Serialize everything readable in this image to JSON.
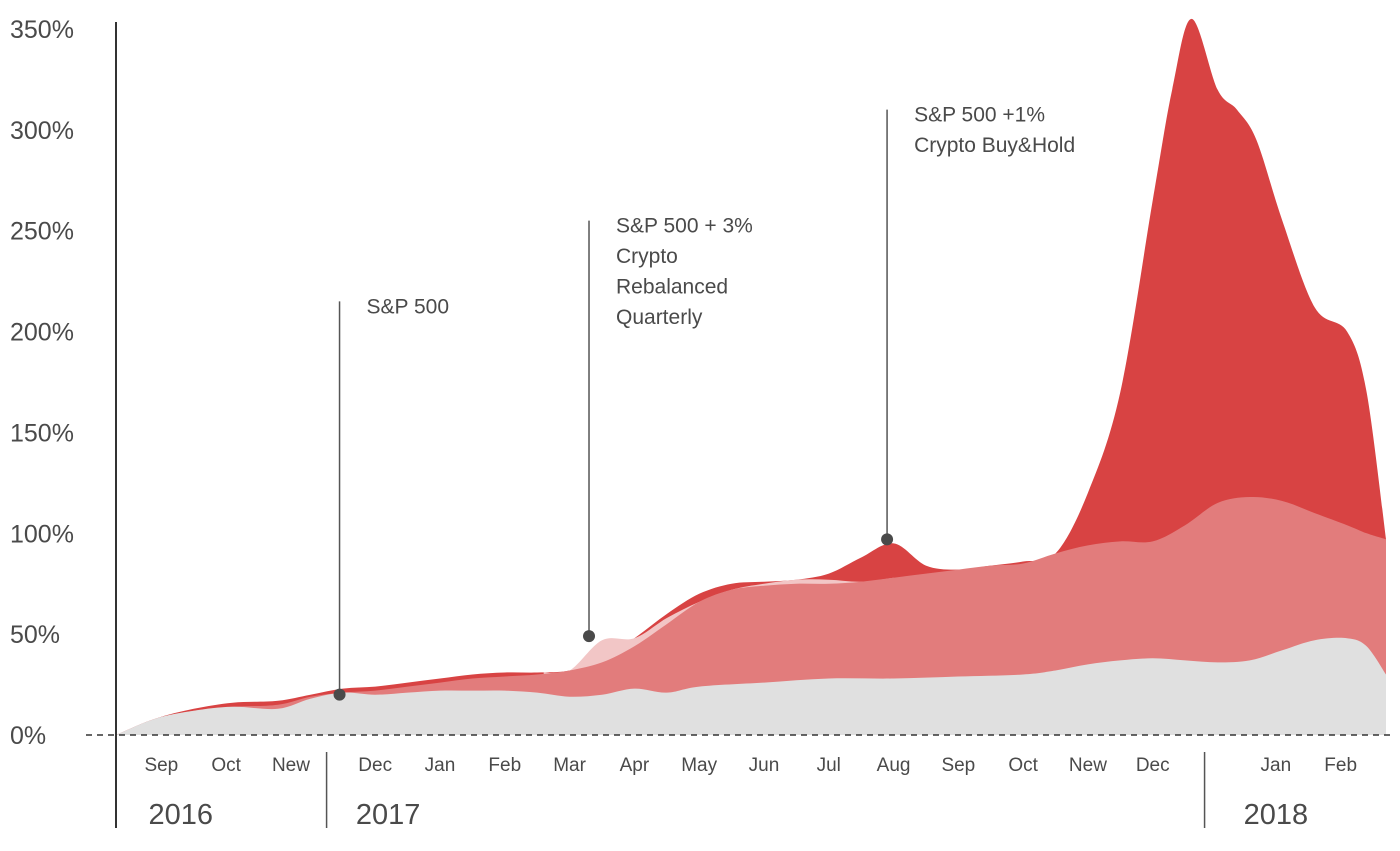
{
  "chart_data": {
    "type": "area",
    "ylim": [
      0,
      350
    ],
    "yticks": [
      0,
      50,
      100,
      150,
      200,
      250,
      300,
      350
    ],
    "ytick_labels": [
      "0%",
      "50%",
      "100%",
      "150%",
      "200%",
      "250%",
      "300%",
      "350%"
    ],
    "month_labels": [
      "Sep",
      "Oct",
      "New",
      "Dec",
      "Jan",
      "Feb",
      "Mar",
      "Apr",
      "May",
      "Jun",
      "Jul",
      "Aug",
      "Sep",
      "Oct",
      "New",
      "Dec",
      "Jan",
      "Feb"
    ],
    "year_labels": [
      "2016",
      "2017",
      "2018"
    ],
    "x_range": [
      0,
      19.6
    ],
    "month_positions": [
      0.7,
      1.7,
      2.7,
      4.0,
      5.0,
      6.0,
      7.0,
      8.0,
      9.0,
      10.0,
      11.0,
      12.0,
      13.0,
      14.0,
      15.0,
      16.0,
      17.9,
      18.9
    ],
    "year_dividers": [
      3.25,
      16.8
    ],
    "year_positions": [
      1.0,
      4.2,
      17.9
    ],
    "colors": {
      "sp500": "#e0e0e0",
      "rebalanced": "#e27c7c",
      "rebalanced_light": "#f2c6c6",
      "buyhold": "#d84343",
      "annotation": "#555555"
    },
    "series": [
      {
        "name": "S&P 500",
        "x": [
          0,
          0.6,
          1.2,
          1.8,
          2.5,
          3.0,
          3.5,
          4.0,
          4.5,
          5.0,
          5.5,
          6.0,
          6.5,
          7.0,
          7.5,
          8.0,
          8.5,
          9.0,
          10.0,
          11.0,
          12.0,
          13.0,
          14.0,
          14.5,
          15.0,
          15.5,
          16.0,
          16.5,
          17.0,
          17.5,
          18.0,
          18.5,
          19.0,
          19.3,
          19.6
        ],
        "values": [
          0,
          8,
          12,
          14,
          13,
          18,
          21,
          20,
          21,
          22,
          22,
          22,
          21,
          19,
          20,
          23,
          21,
          24,
          26,
          28,
          28,
          29,
          30,
          32,
          35,
          37,
          38,
          37,
          36,
          37,
          42,
          47,
          48,
          44,
          30
        ]
      },
      {
        "name": "S&P 500 + 3% Crypto Rebalanced Quarterly",
        "x": [
          0,
          0.6,
          1.2,
          1.8,
          2.5,
          3.0,
          3.5,
          4.0,
          4.5,
          5.0,
          5.5,
          6.0,
          6.5,
          7.0,
          7.5,
          8.0,
          8.5,
          9.0,
          9.5,
          10.0,
          10.5,
          11.0,
          11.5,
          12.0,
          12.5,
          13.0,
          13.5,
          14.0,
          14.5,
          15.0,
          15.5,
          16.0,
          16.5,
          17.0,
          17.5,
          18.0,
          18.5,
          19.0,
          19.3,
          19.6
        ],
        "values": [
          0,
          8,
          12,
          14,
          15,
          19,
          21,
          22,
          24,
          26,
          28,
          29,
          30,
          32,
          36,
          44,
          55,
          66,
          72,
          74,
          75,
          75,
          76,
          78,
          80,
          82,
          84,
          85,
          90,
          94,
          96,
          96,
          104,
          115,
          118,
          116,
          110,
          104,
          100,
          97
        ]
      },
      {
        "name": "S&P 500 + 1% Crypto Buy&Hold",
        "x": [
          0,
          0.6,
          1.2,
          1.8,
          2.5,
          3.0,
          3.5,
          4.0,
          4.5,
          5.0,
          5.5,
          6.0,
          6.5,
          7.0,
          7.5,
          8.0,
          8.5,
          9.0,
          9.5,
          10.0,
          10.5,
          11.0,
          11.5,
          12.0,
          12.5,
          13.0,
          13.5,
          14.0,
          14.5,
          15.0,
          15.5,
          16.0,
          16.3,
          16.6,
          17.0,
          17.3,
          17.6,
          18.0,
          18.5,
          19.0,
          19.3,
          19.6
        ],
        "values": [
          0,
          8,
          13,
          16,
          17,
          20,
          23,
          24,
          26,
          28,
          30,
          31,
          31,
          32,
          38,
          48,
          60,
          70,
          75,
          76,
          77,
          80,
          88,
          95,
          84,
          82,
          84,
          86,
          90,
          120,
          170,
          265,
          320,
          355,
          320,
          310,
          295,
          255,
          212,
          200,
          170,
          97
        ]
      }
    ],
    "light_overlay": {
      "x": [
        6.6,
        7.0,
        7.5,
        8.0,
        8.5,
        9.0,
        9.5,
        10.0,
        10.5,
        11.0,
        11.5,
        12.0
      ],
      "values": [
        31,
        32,
        47,
        48,
        58,
        66,
        72,
        75,
        77,
        77,
        76,
        78
      ]
    },
    "annotations": [
      {
        "x": 3.45,
        "y": 20,
        "top_y": 215,
        "lines": [
          "S&P 500"
        ]
      },
      {
        "x": 7.3,
        "y": 49,
        "top_y": 255,
        "lines": [
          "S&P 500 + 3%",
          "Crypto",
          "Rebalanced",
          "Quarterly"
        ]
      },
      {
        "x": 11.9,
        "y": 97,
        "top_y": 310,
        "lines": [
          "S&P 500 +1%",
          "Crypto Buy&Hold"
        ]
      }
    ]
  }
}
